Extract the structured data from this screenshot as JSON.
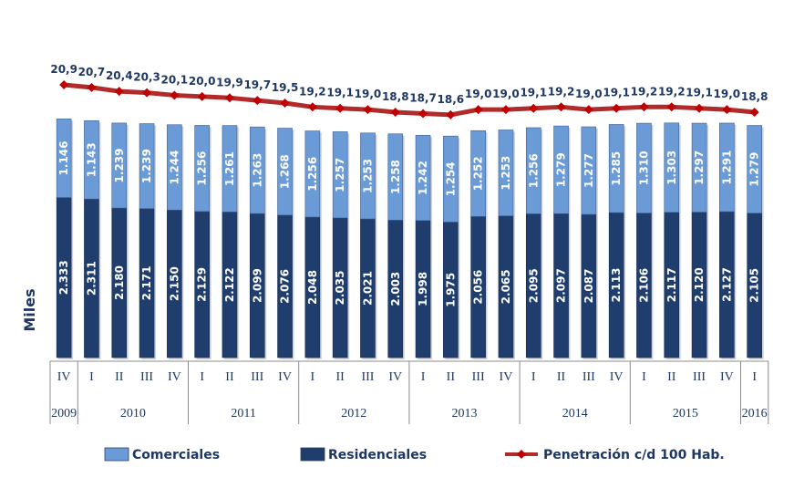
{
  "chart_data": {
    "type": "bar",
    "stacked": true,
    "ylabel": "Miles",
    "x": [
      {
        "quarter": "IV",
        "year": "2009"
      },
      {
        "quarter": "I",
        "year": "2010"
      },
      {
        "quarter": "II",
        "year": "2010"
      },
      {
        "quarter": "III",
        "year": "2010"
      },
      {
        "quarter": "IV",
        "year": "2010"
      },
      {
        "quarter": "I",
        "year": "2011"
      },
      {
        "quarter": "II",
        "year": "2011"
      },
      {
        "quarter": "III",
        "year": "2011"
      },
      {
        "quarter": "IV",
        "year": "2011"
      },
      {
        "quarter": "I",
        "year": "2012"
      },
      {
        "quarter": "II",
        "year": "2012"
      },
      {
        "quarter": "III",
        "year": "2012"
      },
      {
        "quarter": "IV",
        "year": "2012"
      },
      {
        "quarter": "I",
        "year": "2013"
      },
      {
        "quarter": "II",
        "year": "2013"
      },
      {
        "quarter": "III",
        "year": "2013"
      },
      {
        "quarter": "IV",
        "year": "2013"
      },
      {
        "quarter": "I",
        "year": "2014"
      },
      {
        "quarter": "II",
        "year": "2014"
      },
      {
        "quarter": "III",
        "year": "2014"
      },
      {
        "quarter": "IV",
        "year": "2014"
      },
      {
        "quarter": "I",
        "year": "2015"
      },
      {
        "quarter": "II",
        "year": "2015"
      },
      {
        "quarter": "III",
        "year": "2015"
      },
      {
        "quarter": "IV",
        "year": "2015"
      },
      {
        "quarter": "I",
        "year": "2016"
      }
    ],
    "years": [
      "2009",
      "2010",
      "2011",
      "2012",
      "2013",
      "2014",
      "2015",
      "2016"
    ],
    "series": [
      {
        "name": "Residenciales",
        "color": "#1f3e6e",
        "values": [
          2333,
          2311,
          2180,
          2171,
          2150,
          2129,
          2122,
          2099,
          2076,
          2048,
          2035,
          2021,
          2003,
          1998,
          1975,
          2056,
          2065,
          2095,
          2097,
          2087,
          2113,
          2106,
          2117,
          2120,
          2127,
          2105
        ],
        "labels": [
          "2.333",
          "2.311",
          "2.180",
          "2.171",
          "2.150",
          "2.129",
          "2.122",
          "2.099",
          "2.076",
          "2.048",
          "2.035",
          "2.021",
          "2.003",
          "1.998",
          "1.975",
          "2.056",
          "2.065",
          "2.095",
          "2.097",
          "2.087",
          "2.113",
          "2.106",
          "2.117",
          "2.120",
          "2.127",
          "2.105"
        ]
      },
      {
        "name": "Comerciales",
        "color": "#6b9bd6",
        "values": [
          1146,
          1143,
          1239,
          1239,
          1244,
          1256,
          1261,
          1263,
          1268,
          1256,
          1257,
          1253,
          1258,
          1242,
          1254,
          1252,
          1253,
          1256,
          1279,
          1277,
          1285,
          1310,
          1303,
          1297,
          1291,
          1279
        ],
        "labels": [
          "1.146",
          "1.143",
          "1.239",
          "1.239",
          "1.244",
          "1.256",
          "1.261",
          "1.263",
          "1.268",
          "1.256",
          "1.257",
          "1.253",
          "1.258",
          "1.242",
          "1.254",
          "1.252",
          "1.253",
          "1.256",
          "1.279",
          "1.277",
          "1.285",
          "1.310",
          "1.303",
          "1.297",
          "1.291",
          "1.279"
        ]
      },
      {
        "name": "Penetración c/d 100 Hab.",
        "type": "line",
        "color": "#b22b2b",
        "marker_color": "#c00000",
        "values": [
          20.9,
          20.7,
          20.4,
          20.3,
          20.1,
          20.0,
          19.9,
          19.7,
          19.5,
          19.2,
          19.1,
          19.0,
          18.8,
          18.7,
          18.6,
          19.0,
          19.0,
          19.1,
          19.2,
          19.0,
          19.1,
          19.2,
          19.2,
          19.1,
          19.0,
          18.8
        ],
        "labels": [
          "20,9",
          "20,7",
          "20,4",
          "20,3",
          "20,1",
          "20,0",
          "19,9",
          "19,7",
          "19,5",
          "19,2",
          "19,1",
          "19,0",
          "18,8",
          "18,7",
          "18,6",
          "19,0",
          "19,0",
          "19,1",
          "19,2",
          "19,0",
          "19,1",
          "19,2",
          "19,2",
          "19,1",
          "19,0",
          "18,8"
        ]
      }
    ],
    "legend": {
      "position": "bottom",
      "items": [
        {
          "label": "Comerciales",
          "color": "#6b9bd6",
          "kind": "box"
        },
        {
          "label": "Residenciales",
          "color": "#1f3e6e",
          "kind": "box"
        },
        {
          "label": "Penetración c/d 100 Hab.",
          "color": "#b22b2b",
          "kind": "line-marker"
        }
      ]
    },
    "grid": false
  }
}
